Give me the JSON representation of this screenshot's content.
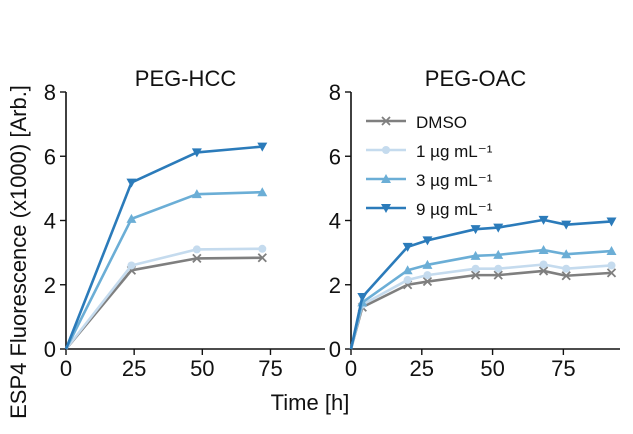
{
  "figure": {
    "ylabel": "ESP4 Fluorescence (x1000) [Arb.]",
    "xlabel": "Time [h]"
  },
  "chart_data": [
    {
      "type": "line",
      "title": "PEG-HCC",
      "xlabel": "Time [h]",
      "ylabel": "ESP4 Fluorescence (x1000) [Arb.]",
      "xlim": [
        0,
        95
      ],
      "ylim": [
        0,
        8
      ],
      "xticks": [
        0,
        25,
        50,
        75
      ],
      "yticks": [
        0,
        2,
        4,
        6,
        8
      ],
      "grid": false,
      "series": [
        {
          "name": "DMSO",
          "color": "#7f7f7f",
          "marker": "x",
          "x": [
            0,
            24,
            48,
            72
          ],
          "y": [
            0,
            2.45,
            2.82,
            2.84
          ]
        },
        {
          "name": "1 µg mL⁻¹",
          "color": "#c5dbee",
          "marker": "circle",
          "x": [
            0,
            24,
            48,
            72
          ],
          "y": [
            0,
            2.6,
            3.1,
            3.12
          ]
        },
        {
          "name": "3 µg mL⁻¹",
          "color": "#6baed6",
          "marker": "triangle-up",
          "x": [
            0,
            24,
            48,
            72
          ],
          "y": [
            0,
            4.05,
            4.82,
            4.88
          ]
        },
        {
          "name": "9 µg mL⁻¹",
          "color": "#2b7bba",
          "marker": "triangle-down",
          "x": [
            0,
            24,
            48,
            72
          ],
          "y": [
            0,
            5.18,
            6.12,
            6.3
          ]
        }
      ]
    },
    {
      "type": "line",
      "title": "PEG-OAC",
      "xlabel": "Time [h]",
      "ylabel": "",
      "xlim": [
        0,
        95
      ],
      "ylim": [
        0,
        8
      ],
      "xticks": [
        0,
        25,
        50,
        75
      ],
      "yticks": [
        0,
        2,
        4,
        6,
        8
      ],
      "grid": false,
      "legend_position": "top-left",
      "series": [
        {
          "name": "DMSO",
          "color": "#7f7f7f",
          "marker": "x",
          "x": [
            0,
            4,
            20,
            27,
            44,
            52,
            68,
            76,
            92
          ],
          "y": [
            0,
            1.3,
            2.0,
            2.1,
            2.3,
            2.3,
            2.43,
            2.28,
            2.37
          ]
        },
        {
          "name": "1 µg mL⁻¹",
          "color": "#c5dbee",
          "marker": "circle",
          "x": [
            0,
            4,
            20,
            27,
            44,
            52,
            68,
            76,
            92
          ],
          "y": [
            0,
            1.38,
            2.15,
            2.3,
            2.5,
            2.5,
            2.63,
            2.5,
            2.6
          ]
        },
        {
          "name": "3 µg mL⁻¹",
          "color": "#6baed6",
          "marker": "triangle-up",
          "x": [
            0,
            4,
            20,
            27,
            44,
            52,
            68,
            76,
            92
          ],
          "y": [
            0,
            1.45,
            2.45,
            2.62,
            2.9,
            2.93,
            3.08,
            2.95,
            3.05
          ]
        },
        {
          "name": "9 µg mL⁻¹",
          "color": "#2b7bba",
          "marker": "triangle-down",
          "x": [
            0,
            4,
            20,
            27,
            44,
            52,
            68,
            76,
            92
          ],
          "y": [
            0,
            1.62,
            3.18,
            3.38,
            3.73,
            3.78,
            4.02,
            3.87,
            3.97
          ]
        }
      ]
    }
  ]
}
